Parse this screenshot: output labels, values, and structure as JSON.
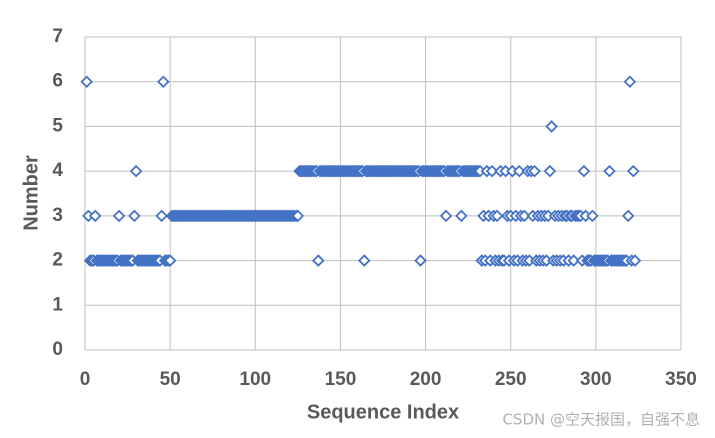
{
  "chart_data": {
    "type": "scatter",
    "x_label": "Sequence Index",
    "y_label": "Number",
    "color": "#4472c4",
    "marker": "diamond",
    "grid": true,
    "xlim": [
      0,
      350
    ],
    "xticks": [
      0,
      50,
      100,
      150,
      200,
      250,
      300,
      350
    ],
    "ylim": [
      0,
      7
    ],
    "yticks": [
      0,
      1,
      2,
      3,
      4,
      5,
      6,
      7
    ],
    "x": [
      1,
      2,
      3,
      4,
      5,
      6,
      7,
      8,
      9,
      10,
      11,
      12,
      13,
      14,
      15,
      16,
      17,
      18,
      19,
      20,
      21,
      22,
      23,
      24,
      25,
      26,
      27,
      28,
      29,
      30,
      31,
      32,
      33,
      34,
      35,
      36,
      37,
      38,
      39,
      40,
      41,
      42,
      43,
      44,
      45,
      46,
      47,
      48,
      49,
      50,
      51,
      52,
      53,
      54,
      55,
      56,
      57,
      58,
      59,
      60,
      61,
      62,
      63,
      64,
      65,
      66,
      67,
      68,
      69,
      70,
      71,
      72,
      73,
      74,
      75,
      76,
      77,
      78,
      79,
      80,
      81,
      82,
      83,
      84,
      85,
      86,
      87,
      88,
      89,
      90,
      91,
      92,
      93,
      94,
      95,
      96,
      97,
      98,
      99,
      100,
      101,
      102,
      103,
      104,
      105,
      106,
      107,
      108,
      109,
      110,
      111,
      112,
      113,
      114,
      115,
      116,
      117,
      118,
      119,
      120,
      121,
      122,
      123,
      124,
      125,
      126,
      127,
      128,
      129,
      130,
      131,
      132,
      133,
      134,
      135,
      136,
      137,
      138,
      139,
      140,
      141,
      142,
      143,
      144,
      145,
      146,
      147,
      148,
      149,
      150,
      151,
      152,
      153,
      154,
      155,
      156,
      157,
      158,
      159,
      160,
      161,
      162,
      163,
      164,
      165,
      166,
      167,
      168,
      169,
      170,
      171,
      172,
      173,
      174,
      175,
      176,
      177,
      178,
      179,
      180,
      181,
      182,
      183,
      184,
      185,
      186,
      187,
      188,
      189,
      190,
      191,
      192,
      193,
      194,
      195,
      196,
      197,
      198,
      199,
      200,
      201,
      202,
      203,
      204,
      205,
      206,
      207,
      208,
      209,
      210,
      211,
      212,
      213,
      214,
      215,
      216,
      217,
      218,
      219,
      220,
      221,
      222,
      223,
      224,
      225,
      226,
      227,
      228,
      229,
      230,
      231,
      232,
      233,
      234,
      235,
      236,
      237,
      238,
      239,
      240,
      241,
      242,
      243,
      244,
      245,
      246,
      247,
      248,
      249,
      250,
      251,
      252,
      253,
      254,
      255,
      256,
      257,
      258,
      259,
      260,
      261,
      262,
      263,
      264,
      265,
      266,
      267,
      268,
      269,
      270,
      271,
      272,
      273,
      274,
      275,
      276,
      277,
      278,
      279,
      280,
      281,
      282,
      283,
      284,
      285,
      286,
      287,
      288,
      289,
      290,
      291,
      292,
      293,
      294,
      295,
      296,
      297,
      298,
      299,
      300,
      301,
      302,
      303,
      304,
      305,
      306,
      307,
      308,
      309,
      310,
      311,
      312,
      313,
      314,
      315,
      316,
      317,
      318,
      319,
      320,
      321,
      322,
      323
    ],
    "values": [
      6,
      3,
      2,
      2,
      2,
      3,
      2,
      2,
      2,
      2,
      2,
      2,
      2,
      2,
      2,
      2,
      2,
      2,
      2,
      3,
      2,
      2,
      2,
      2,
      2,
      2,
      2,
      2,
      3,
      4,
      2,
      2,
      2,
      2,
      2,
      2,
      2,
      2,
      2,
      2,
      2,
      2,
      2,
      2,
      3,
      6,
      2,
      2,
      2,
      2,
      3,
      3,
      3,
      3,
      3,
      3,
      3,
      3,
      3,
      3,
      3,
      3,
      3,
      3,
      3,
      3,
      3,
      3,
      3,
      3,
      3,
      3,
      3,
      3,
      3,
      3,
      3,
      3,
      3,
      3,
      3,
      3,
      3,
      3,
      3,
      3,
      3,
      3,
      3,
      3,
      3,
      3,
      3,
      3,
      3,
      3,
      3,
      3,
      3,
      3,
      3,
      3,
      3,
      3,
      3,
      3,
      3,
      3,
      3,
      3,
      3,
      3,
      3,
      3,
      3,
      3,
      3,
      3,
      3,
      3,
      3,
      3,
      3,
      3,
      3,
      4,
      4,
      4,
      4,
      4,
      4,
      4,
      4,
      4,
      4,
      4,
      2,
      4,
      4,
      4,
      4,
      4,
      4,
      4,
      4,
      4,
      4,
      4,
      4,
      4,
      4,
      4,
      4,
      4,
      4,
      4,
      4,
      4,
      4,
      4,
      4,
      4,
      4,
      2,
      4,
      4,
      4,
      4,
      4,
      4,
      4,
      4,
      4,
      4,
      4,
      4,
      4,
      4,
      4,
      4,
      4,
      4,
      4,
      4,
      4,
      4,
      4,
      4,
      4,
      4,
      4,
      4,
      4,
      4,
      4,
      4,
      2,
      4,
      4,
      4,
      4,
      4,
      4,
      4,
      4,
      4,
      4,
      4,
      4,
      4,
      4,
      3,
      4,
      4,
      4,
      4,
      4,
      4,
      4,
      4,
      3,
      4,
      4,
      4,
      4,
      4,
      4,
      4,
      4,
      4,
      4,
      4,
      2,
      3,
      2,
      4,
      3,
      2,
      4,
      3,
      2,
      3,
      2,
      4,
      2,
      2,
      4,
      3,
      2,
      3,
      4,
      2,
      3,
      2,
      4,
      3,
      2,
      3,
      2,
      4,
      2,
      4,
      3,
      4,
      2,
      3,
      2,
      3,
      2,
      3,
      2,
      3,
      4,
      5,
      2,
      3,
      2,
      3,
      2,
      3,
      2,
      3,
      3,
      2,
      3,
      3,
      2,
      3,
      3,
      3,
      3,
      2,
      4,
      3,
      2,
      2,
      2,
      3,
      2,
      2,
      2,
      2,
      2,
      2,
      2,
      2,
      2,
      4,
      2,
      2,
      2,
      2,
      2,
      2,
      2,
      2,
      2,
      2,
      3,
      6,
      2,
      4,
      2
    ]
  },
  "watermark": "CSDN @空天报国，自强不息"
}
